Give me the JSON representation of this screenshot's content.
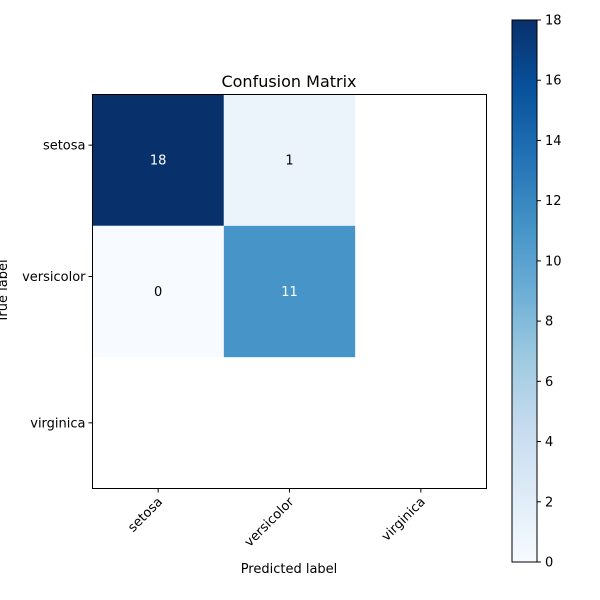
{
  "chart_data": {
    "type": "heatmap",
    "title": "Confusion Matrix",
    "xlabel": "Predicted label",
    "ylabel": "True label",
    "x_categories": [
      "setosa",
      "versicolor",
      "virginica"
    ],
    "y_categories": [
      "setosa",
      "versicolor",
      "virginica"
    ],
    "cells": [
      {
        "row": 0,
        "col": 0,
        "value": 18,
        "label": "18"
      },
      {
        "row": 0,
        "col": 1,
        "value": 1,
        "label": "1"
      },
      {
        "row": 1,
        "col": 0,
        "value": 0,
        "label": "0"
      },
      {
        "row": 1,
        "col": 1,
        "value": 11,
        "label": "11"
      }
    ],
    "colormap": "Blues",
    "color_range": [
      0,
      18
    ],
    "colorbar_ticks": [
      {
        "value": 0,
        "label": "0"
      },
      {
        "value": 2,
        "label": "2"
      },
      {
        "value": 4,
        "label": "4"
      },
      {
        "value": 6,
        "label": "6"
      },
      {
        "value": 8,
        "label": "8"
      },
      {
        "value": 10,
        "label": "10"
      },
      {
        "value": 12,
        "label": "12"
      },
      {
        "value": 14,
        "label": "14"
      },
      {
        "value": 16,
        "label": "16"
      },
      {
        "value": 18,
        "label": "18"
      }
    ],
    "grid": false
  }
}
